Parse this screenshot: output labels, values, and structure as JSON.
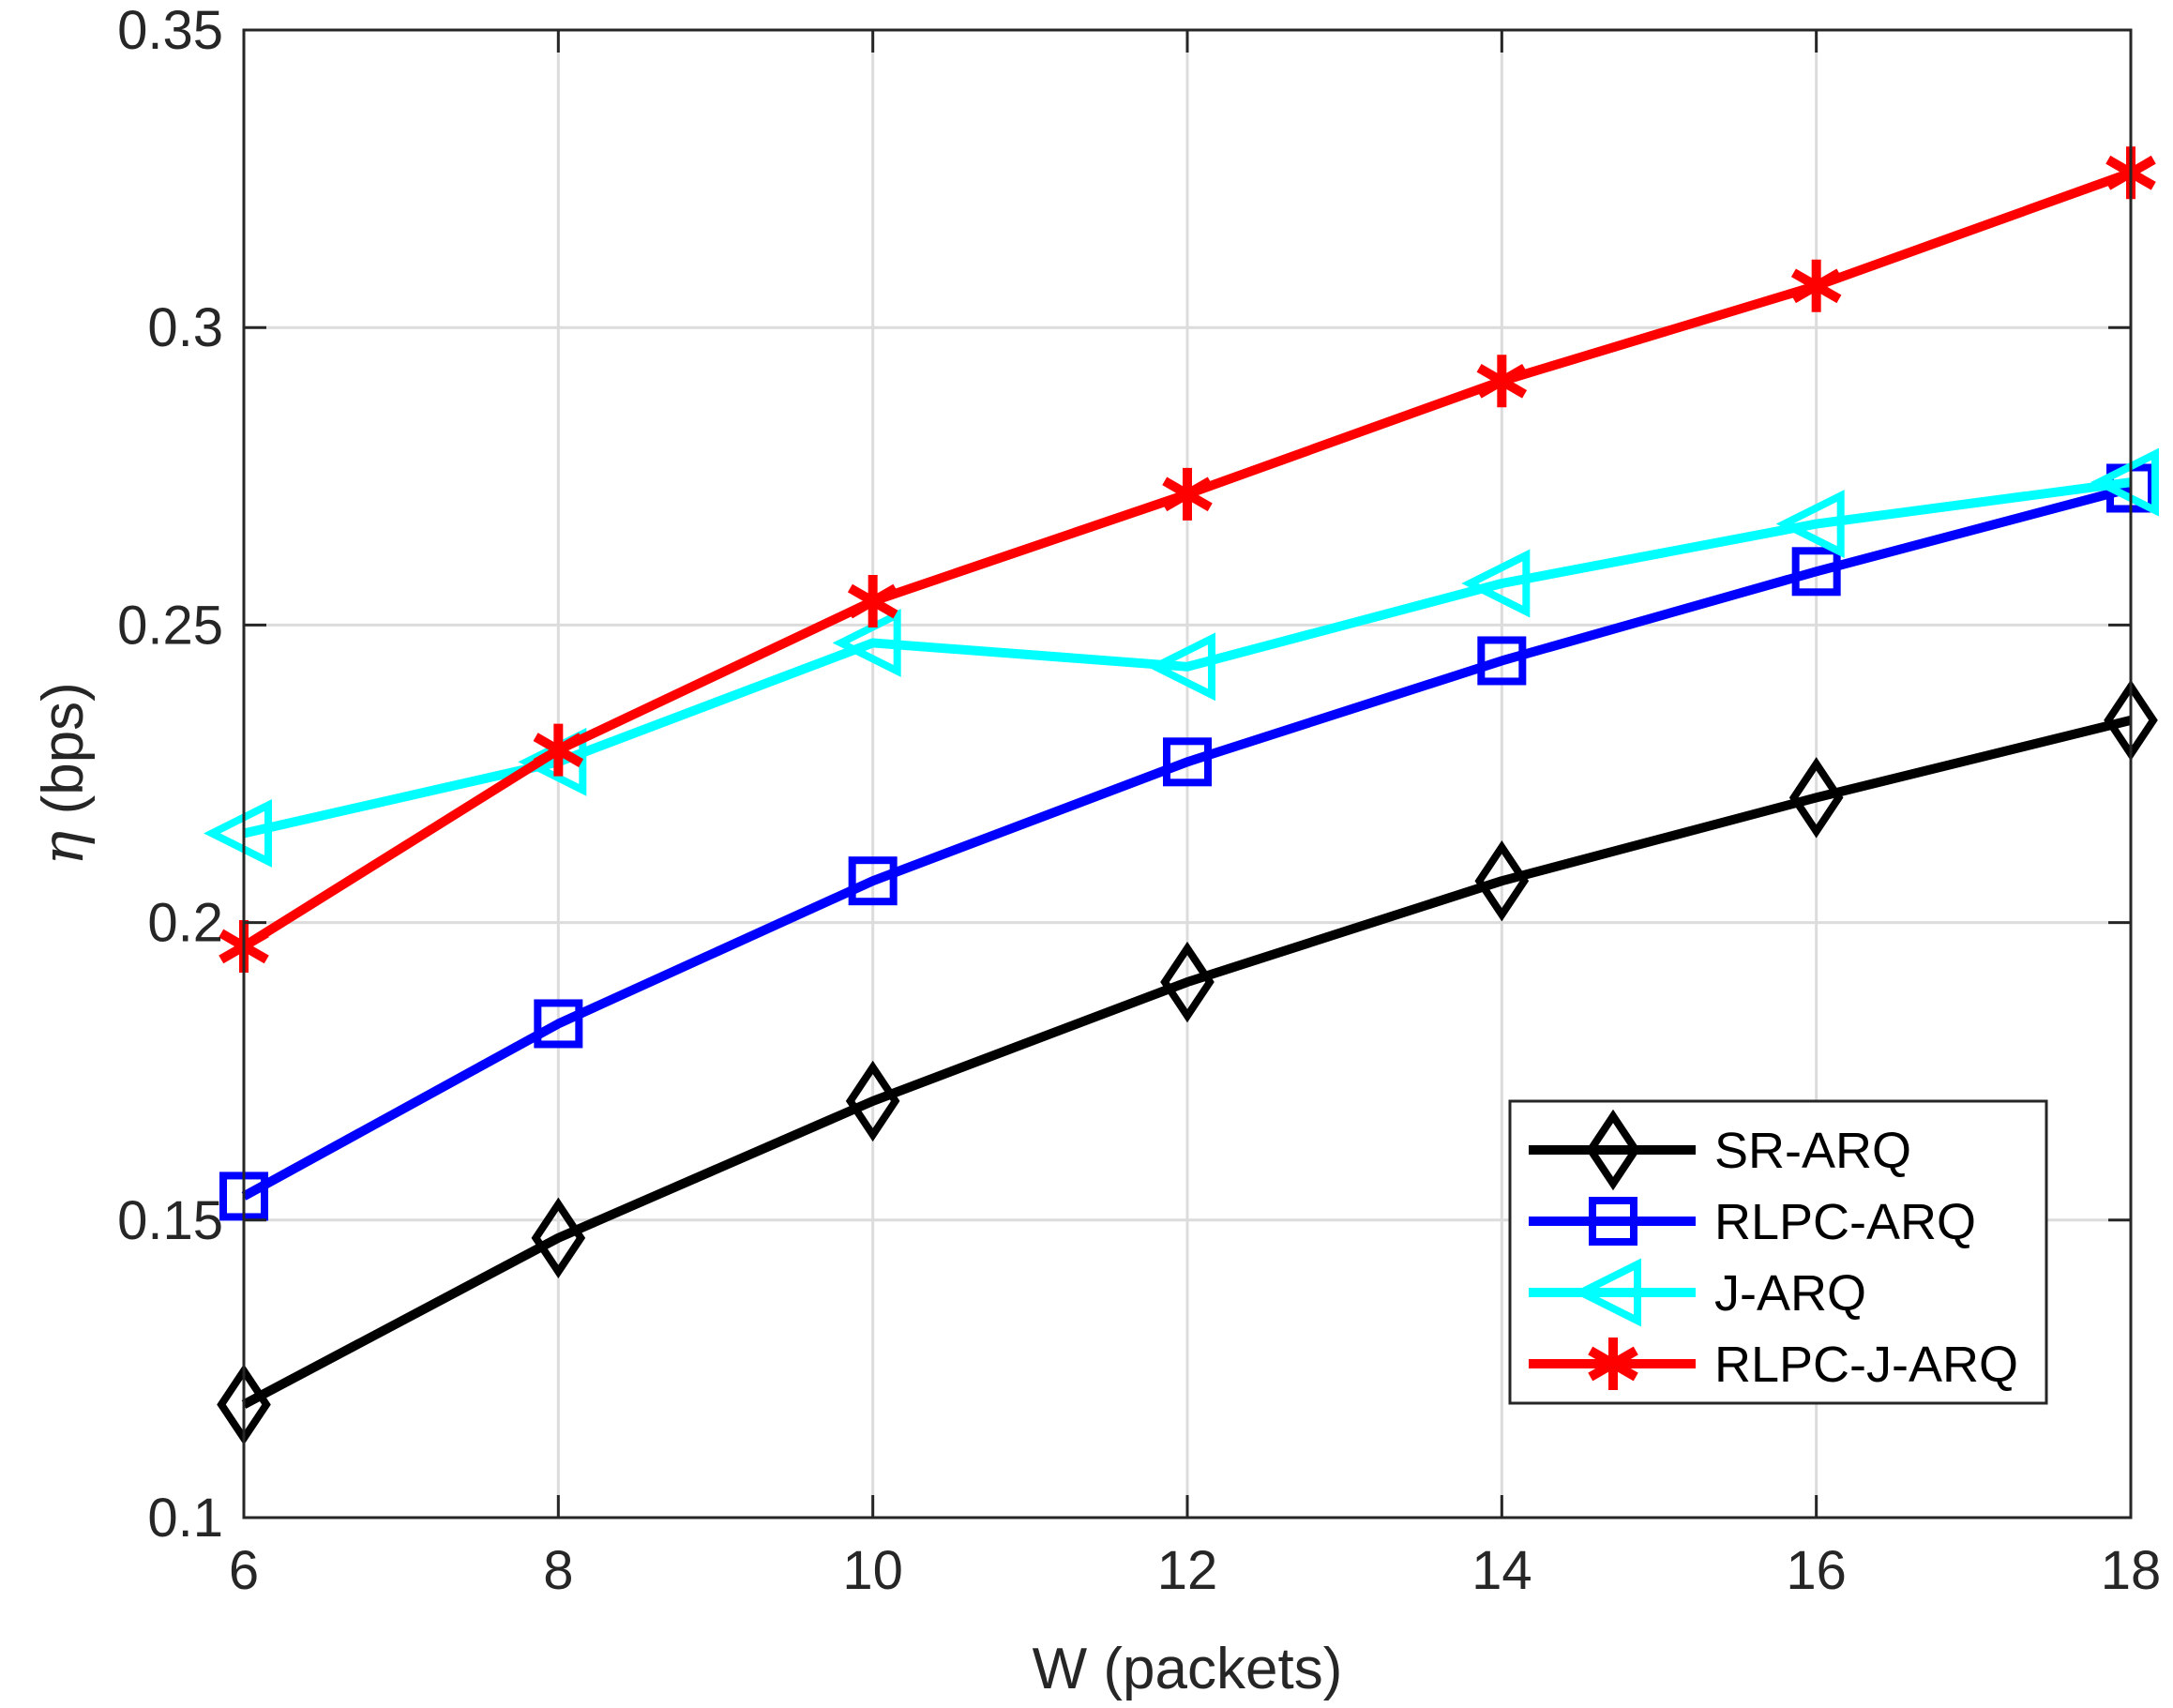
{
  "chart_data": {
    "type": "line",
    "title": "",
    "xlabel": "W (packets)",
    "ylabel_symbol": "η",
    "ylabel_unit": " (bps)",
    "x": [
      6,
      8,
      10,
      12,
      14,
      16,
      18
    ],
    "xlim": [
      6,
      18
    ],
    "ylim": [
      0.1,
      0.35
    ],
    "xticks": [
      6,
      8,
      10,
      12,
      14,
      16,
      18
    ],
    "xtick_labels": [
      "6",
      "8",
      "10",
      "12",
      "14",
      "16",
      "18"
    ],
    "yticks": [
      0.1,
      0.15,
      0.2,
      0.25,
      0.3,
      0.35
    ],
    "ytick_labels": [
      "0.1",
      "0.15",
      "0.2",
      "0.25",
      "0.3",
      "0.35"
    ],
    "grid": true,
    "legend_position": "lower-right",
    "series": [
      {
        "name": "SR-ARQ",
        "color": "#000000",
        "marker": "diamond",
        "values": [
          0.119,
          0.147,
          0.17,
          0.19,
          0.207,
          0.221,
          0.234
        ]
      },
      {
        "name": "RLPC-ARQ",
        "color": "#0000ff",
        "marker": "square",
        "values": [
          0.154,
          0.183,
          0.207,
          0.227,
          0.244,
          0.259,
          0.273
        ]
      },
      {
        "name": "J-ARQ",
        "color": "#00ffff",
        "marker": "triangle-left",
        "values": [
          0.215,
          0.227,
          0.247,
          0.243,
          0.257,
          0.267,
          0.274
        ]
      },
      {
        "name": "RLPC-J-ARQ",
        "color": "#ff0000",
        "marker": "asterisk",
        "values": [
          0.196,
          0.229,
          0.254,
          0.272,
          0.291,
          0.307,
          0.326
        ]
      }
    ]
  }
}
